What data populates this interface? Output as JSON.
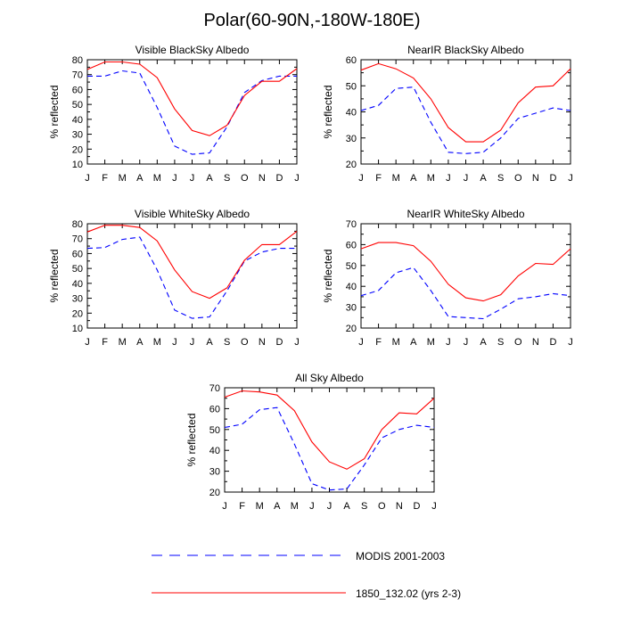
{
  "figure": {
    "title": "Polar(60-90N,-180W-180E)"
  },
  "legend": {
    "entries": [
      {
        "label": "MODIS 2001-2003",
        "color": "#0000ff",
        "style": "dashed"
      },
      {
        "label": "1850_132.02 (yrs 2-3)",
        "color": "#ff0000",
        "style": "solid"
      }
    ]
  },
  "chart_data": [
    {
      "type": "line",
      "title": "Visible BlackSky Albedo",
      "xlabel": "",
      "ylabel": "% reflected",
      "categories": [
        "J",
        "F",
        "M",
        "A",
        "M",
        "J",
        "J",
        "A",
        "S",
        "O",
        "N",
        "D",
        "J"
      ],
      "ylim": [
        10,
        80
      ],
      "yticks": [
        10,
        20,
        30,
        40,
        50,
        60,
        70,
        80
      ],
      "series": [
        {
          "name": "MODIS 2001-2003",
          "values": [
            69,
            69,
            72.5,
            71,
            48,
            22,
            16.5,
            17.5,
            35,
            58,
            66,
            69,
            69
          ]
        },
        {
          "name": "1850_132.02 (yrs 2-3)",
          "values": [
            73.5,
            78.5,
            78.5,
            77,
            68,
            47,
            32.5,
            29,
            36,
            56,
            65.5,
            65.5,
            74
          ]
        }
      ]
    },
    {
      "type": "line",
      "title": "NearIR BlackSky Albedo",
      "xlabel": "",
      "ylabel": "% reflected",
      "categories": [
        "J",
        "F",
        "M",
        "A",
        "M",
        "J",
        "J",
        "A",
        "S",
        "O",
        "N",
        "D",
        "J"
      ],
      "ylim": [
        20,
        60
      ],
      "yticks": [
        20,
        30,
        40,
        50,
        60
      ],
      "series": [
        {
          "name": "MODIS 2001-2003",
          "values": [
            40.5,
            42.5,
            49,
            49.5,
            36,
            24.5,
            24,
            24.5,
            30,
            37.5,
            39.5,
            41.5,
            40.5
          ]
        },
        {
          "name": "1850_132.02 (yrs 2-3)",
          "values": [
            56,
            58.5,
            56.5,
            53,
            45,
            34,
            28.5,
            28.5,
            33,
            43.5,
            49.5,
            50,
            56.5
          ]
        }
      ]
    },
    {
      "type": "line",
      "title": "Visible WhiteSky Albedo",
      "xlabel": "",
      "ylabel": "% reflected",
      "categories": [
        "J",
        "F",
        "M",
        "A",
        "M",
        "J",
        "J",
        "A",
        "S",
        "O",
        "N",
        "D",
        "J"
      ],
      "ylim": [
        10,
        80
      ],
      "yticks": [
        10,
        20,
        30,
        40,
        50,
        60,
        70,
        80
      ],
      "series": [
        {
          "name": "MODIS 2001-2003",
          "values": [
            63.5,
            64,
            69.5,
            71,
            49,
            22,
            16.5,
            17.5,
            35,
            55,
            61,
            63.5,
            63.5
          ]
        },
        {
          "name": "1850_132.02 (yrs 2-3)",
          "values": [
            74.5,
            79,
            79,
            77.5,
            68.5,
            49,
            34.5,
            30,
            37,
            55.5,
            66,
            66,
            75
          ]
        }
      ]
    },
    {
      "type": "line",
      "title": "NearIR WhiteSky Albedo",
      "xlabel": "",
      "ylabel": "% reflected",
      "categories": [
        "J",
        "F",
        "M",
        "A",
        "M",
        "J",
        "J",
        "A",
        "S",
        "O",
        "N",
        "D",
        "J"
      ],
      "ylim": [
        20,
        70
      ],
      "yticks": [
        20,
        30,
        40,
        50,
        60,
        70
      ],
      "series": [
        {
          "name": "MODIS 2001-2003",
          "values": [
            35.5,
            38,
            46.5,
            49,
            38,
            25.5,
            25,
            24.5,
            29,
            34,
            35,
            36.5,
            35.5
          ]
        },
        {
          "name": "1850_132.02 (yrs 2-3)",
          "values": [
            58,
            61,
            61,
            59.5,
            52,
            41,
            34.5,
            33,
            36,
            45,
            51,
            50.5,
            58
          ]
        }
      ]
    },
    {
      "type": "line",
      "title": "All Sky Albedo",
      "xlabel": "",
      "ylabel": "% reflected",
      "categories": [
        "J",
        "F",
        "M",
        "A",
        "M",
        "J",
        "J",
        "A",
        "S",
        "O",
        "N",
        "D",
        "J"
      ],
      "ylim": [
        20,
        70
      ],
      "yticks": [
        20,
        30,
        40,
        50,
        60,
        70
      ],
      "series": [
        {
          "name": "MODIS 2001-2003",
          "values": [
            51,
            52.5,
            59.5,
            60.5,
            43,
            24,
            21,
            21.5,
            33,
            46,
            50,
            52,
            51
          ]
        },
        {
          "name": "1850_132.02 (yrs 2-3)",
          "values": [
            65.5,
            68.5,
            68,
            66.5,
            59,
            44,
            34.5,
            31,
            36,
            50,
            58,
            57.5,
            65
          ]
        }
      ]
    }
  ]
}
